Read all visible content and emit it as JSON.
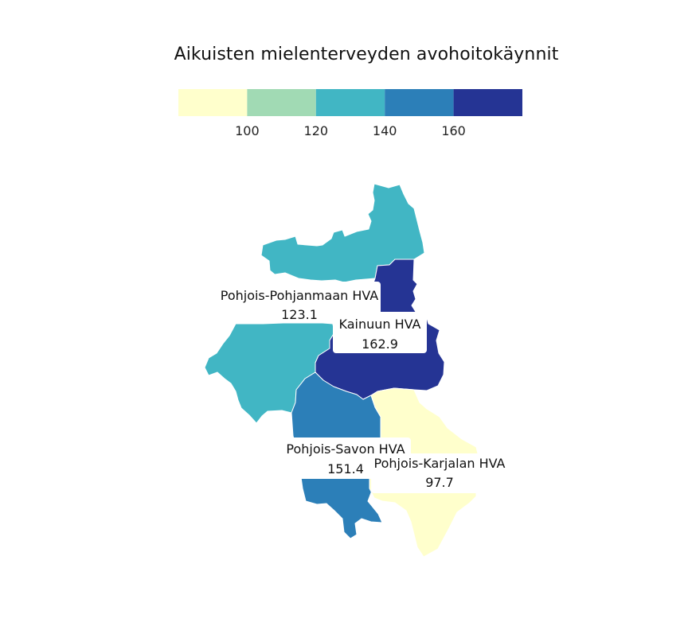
{
  "title": "Aikuisten mielenterveyden avohoitokäynnit",
  "legend": {
    "colors": [
      "#ffffcc",
      "#a1dab4",
      "#41b6c4",
      "#2c7fb8",
      "#253494"
    ],
    "ticks": [
      "100",
      "120",
      "140",
      "160"
    ]
  },
  "chart_data": {
    "type": "choropleth",
    "title": "Aikuisten mielenterveyden avohoitokäynnit",
    "bins": [
      {
        "range": [
          null,
          100
        ],
        "color": "#ffffcc"
      },
      {
        "range": [
          100,
          120
        ],
        "color": "#a1dab4"
      },
      {
        "range": [
          120,
          140
        ],
        "color": "#41b6c4"
      },
      {
        "range": [
          140,
          160
        ],
        "color": "#2c7fb8"
      },
      {
        "range": [
          160,
          null
        ],
        "color": "#253494"
      }
    ],
    "regions": [
      {
        "name": "Pohjois-Pohjanmaan HVA",
        "value": "123.1"
      },
      {
        "name": "Kainuun HVA",
        "value": "162.9"
      },
      {
        "name": "Pohjois-Savon HVA",
        "value": "151.4"
      },
      {
        "name": "Pohjois-Karjalan HVA",
        "value": "97.7"
      }
    ]
  }
}
